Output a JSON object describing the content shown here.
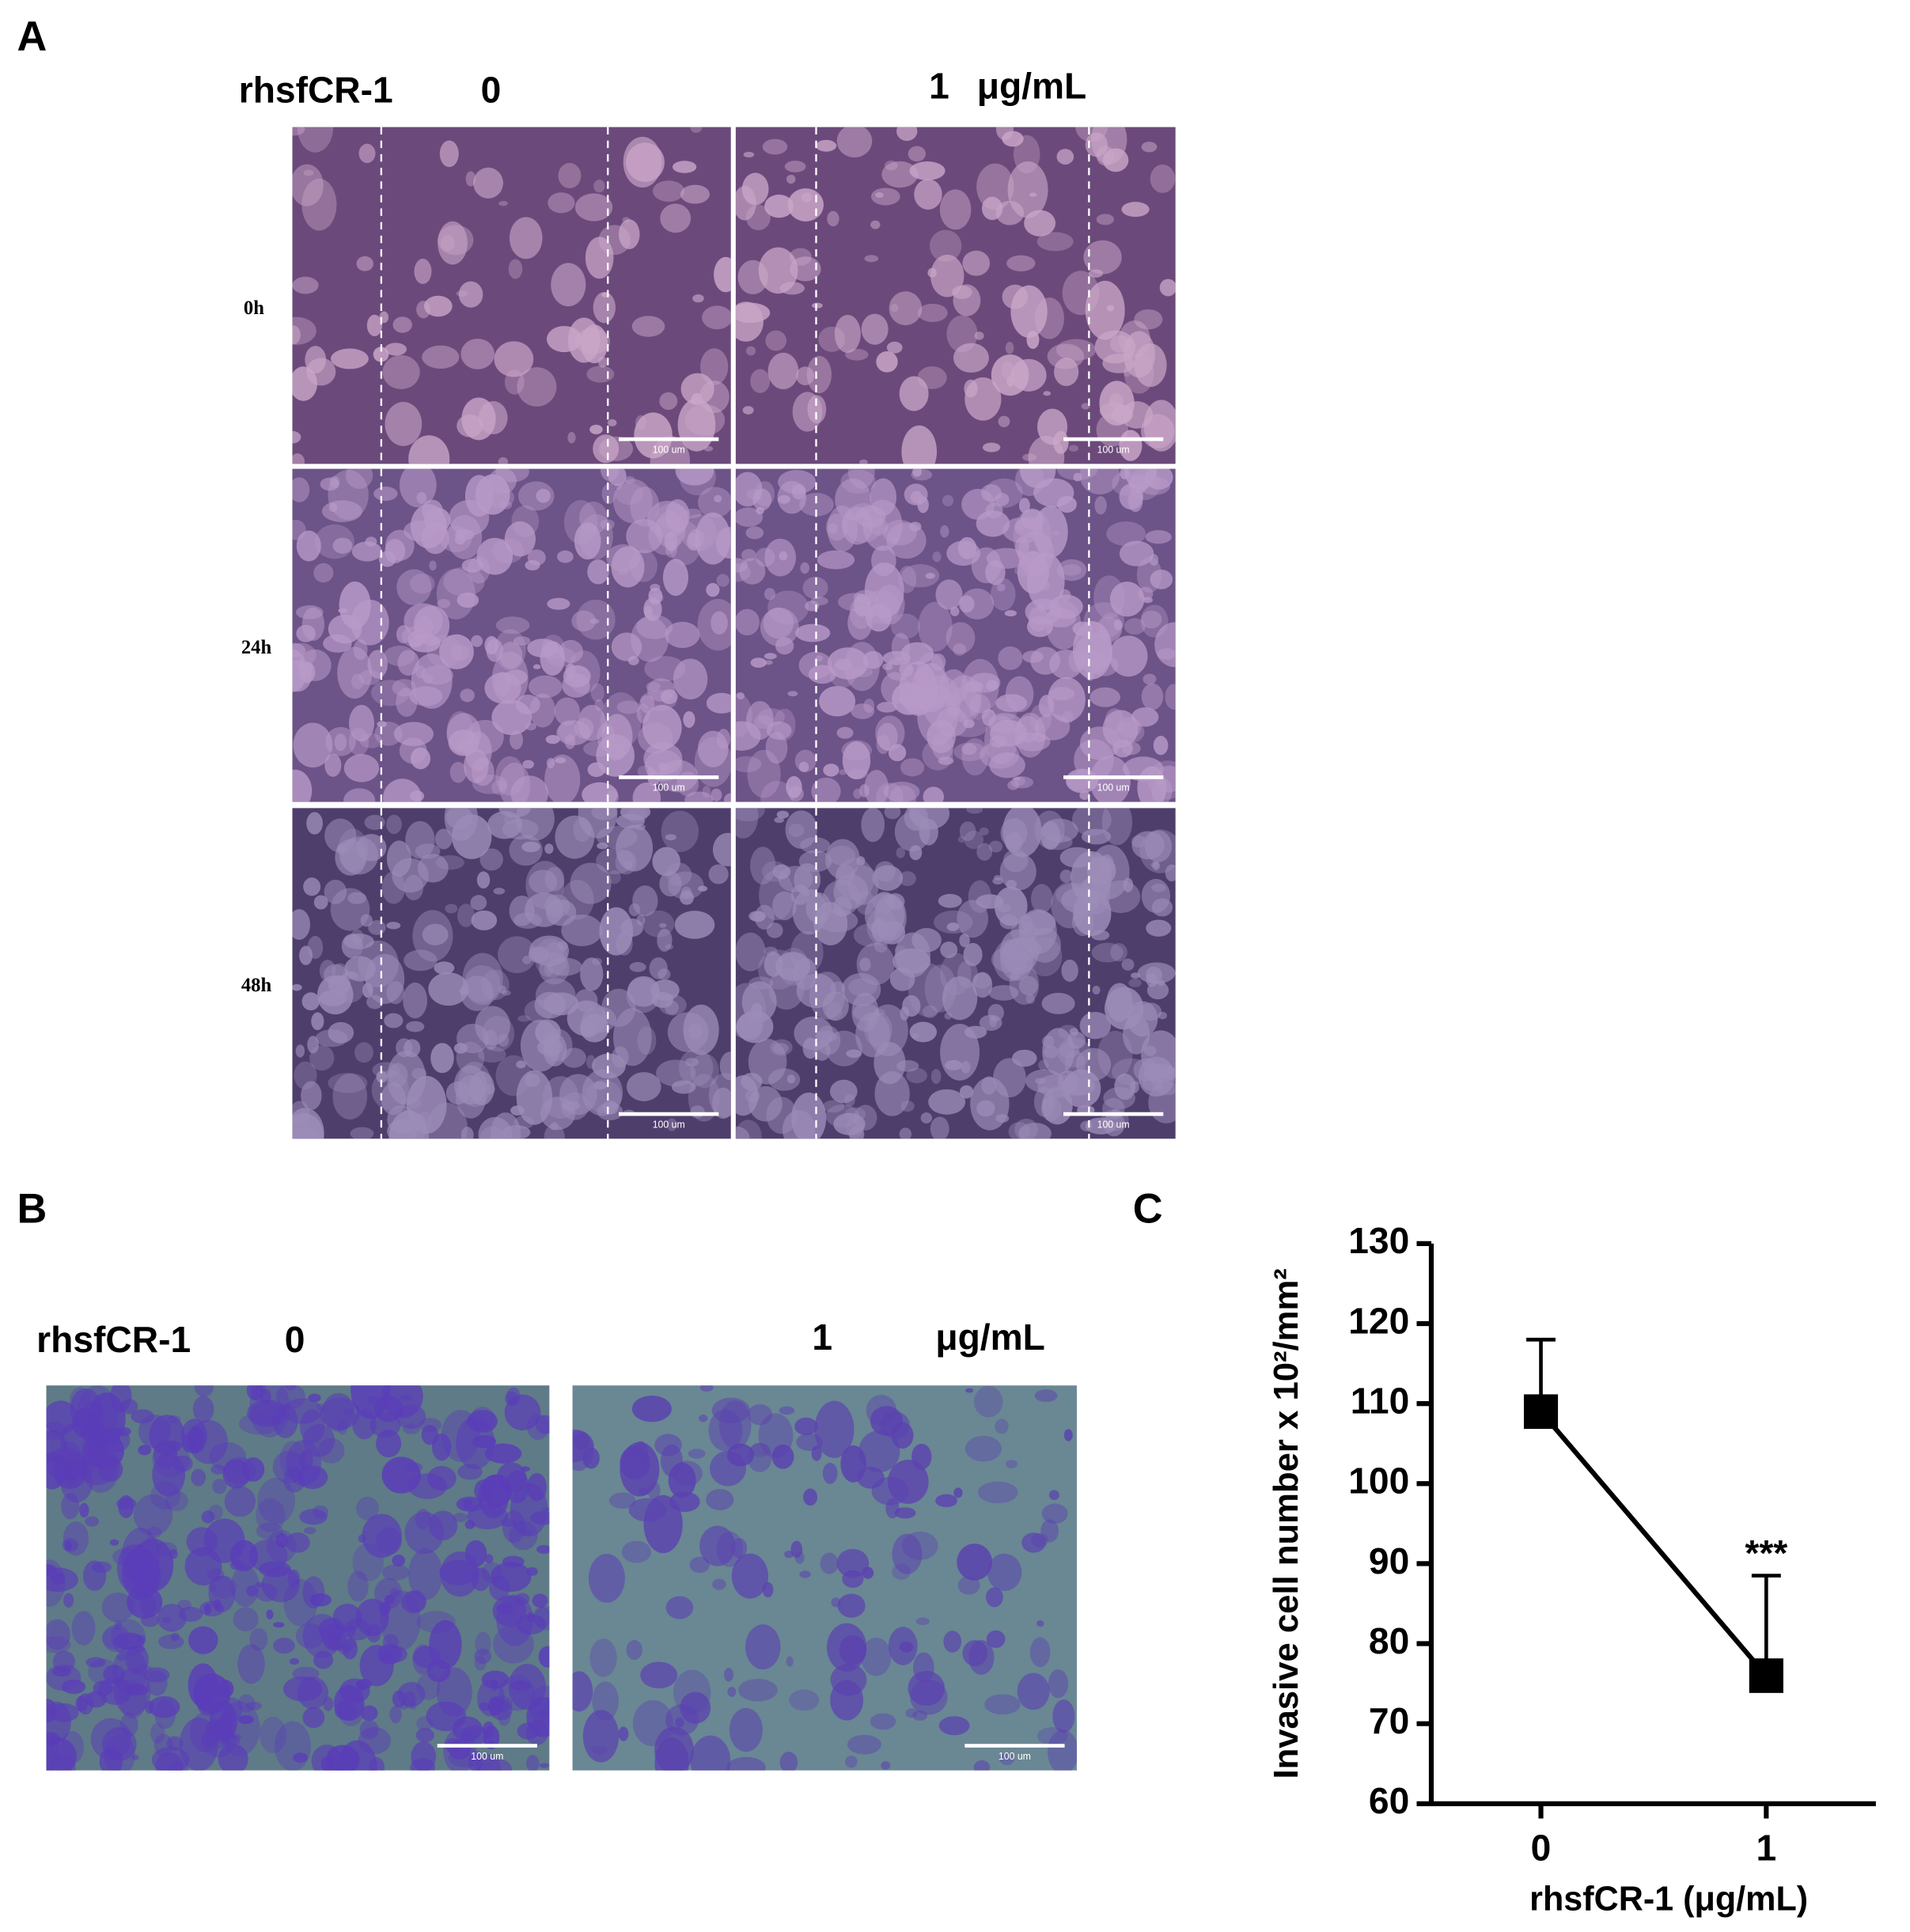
{
  "panel_labels": [
    "A",
    "B",
    "C"
  ],
  "panel_a": {
    "treatment": "rhsfCR-1",
    "doses": [
      "0",
      "1"
    ],
    "unit": "μg/mL",
    "time_points": [
      "0h",
      "24h",
      "48h"
    ],
    "scale_bar_label": "100 um"
  },
  "panel_b": {
    "treatment": "rhsfCR-1",
    "doses": [
      "0",
      "1"
    ],
    "unit": "μg/mL",
    "scale_bar_label": "100 um"
  },
  "chart_data": {
    "type": "line",
    "ylabel": "Invasive cell number x 10²/mm²",
    "xlabel": "rhsfCR-1 (μg/mL)",
    "categories": [
      "0",
      "1"
    ],
    "values": [
      109,
      76
    ],
    "errors": [
      9,
      12.5
    ],
    "annotations": [
      null,
      "***"
    ],
    "color": "#000000",
    "ylim": [
      60,
      130
    ],
    "yticks": [
      60,
      70,
      80,
      90,
      100,
      110,
      120,
      130
    ]
  }
}
